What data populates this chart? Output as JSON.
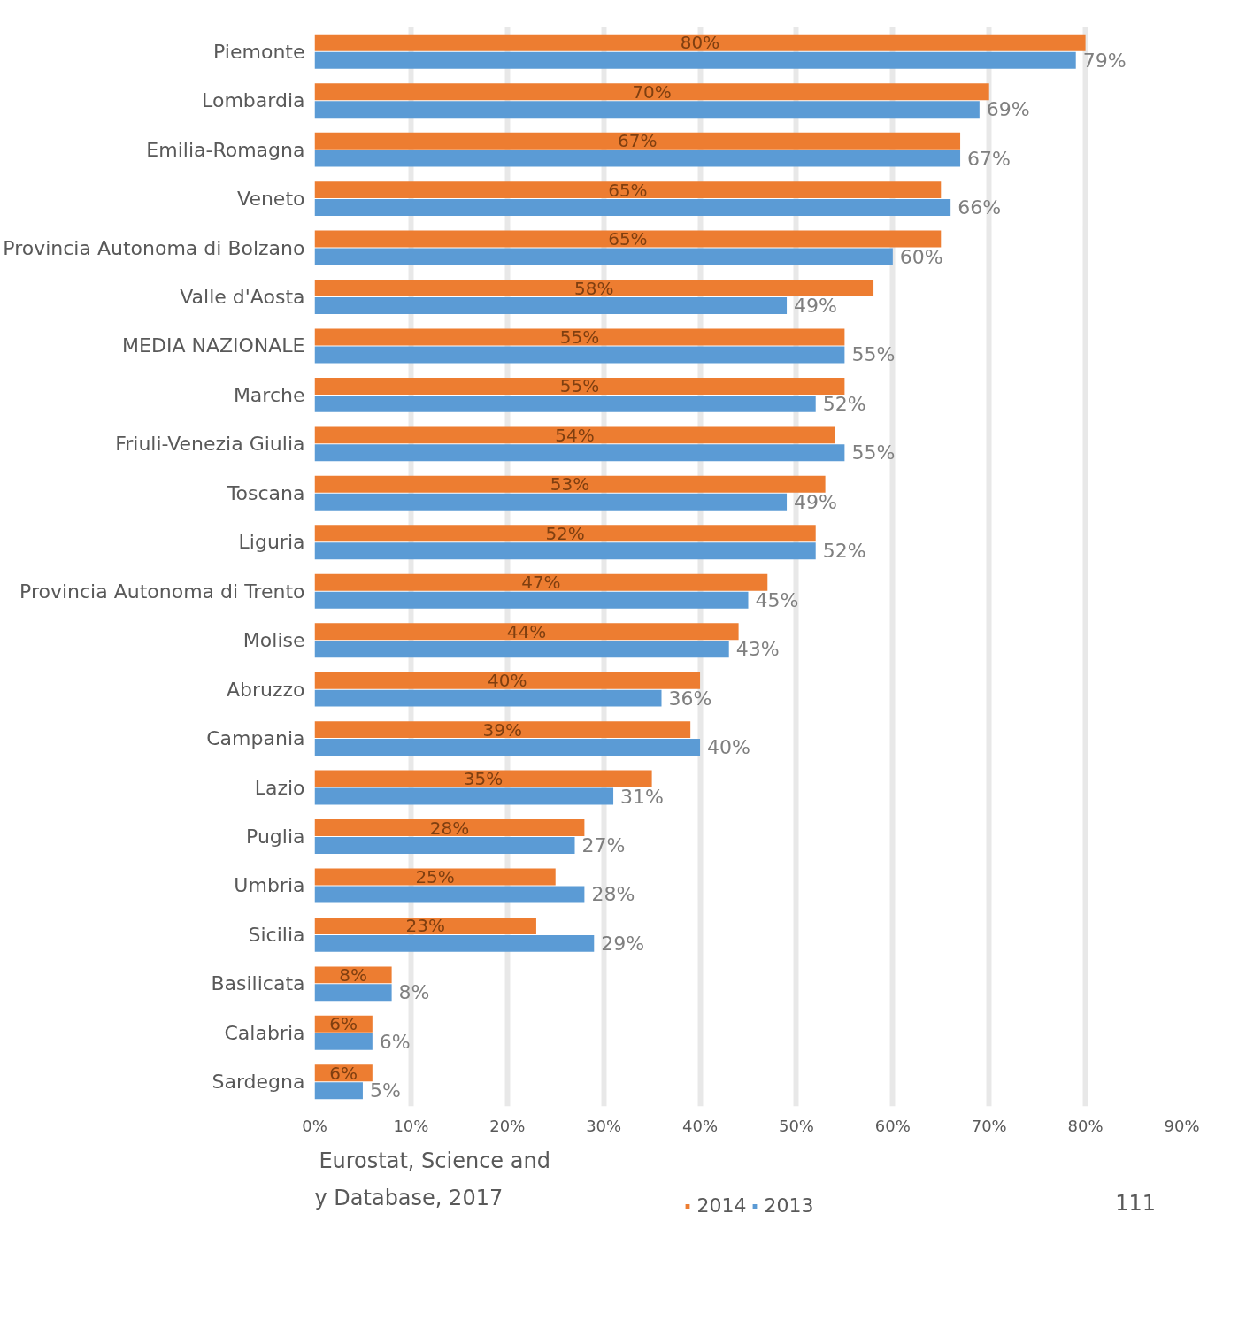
{
  "chart_data": {
    "type": "bar",
    "orientation": "horizontal",
    "categories": [
      "Piemonte",
      "Lombardia",
      "Emilia-Romagna",
      "Veneto",
      "Provincia Autonoma di Bolzano",
      "Valle d'Aosta",
      "MEDIA NAZIONALE",
      "Marche",
      "Friuli-Venezia Giulia",
      "Toscana",
      "Liguria",
      "Provincia Autonoma di Trento",
      "Molise",
      "Abruzzo",
      "Campania",
      "Lazio",
      "Puglia",
      "Umbria",
      "Sicilia",
      "Basilicata",
      "Calabria",
      "Sardegna"
    ],
    "series": [
      {
        "name": "2014",
        "color": "#ed7d31",
        "values": [
          80,
          70,
          67,
          65,
          65,
          58,
          55,
          55,
          54,
          53,
          52,
          47,
          44,
          40,
          39,
          35,
          28,
          25,
          23,
          8,
          6,
          6
        ],
        "value_labels": [
          "80%",
          "70%",
          "67%",
          "65%",
          "65%",
          "58%",
          "55%",
          "55%",
          "54%",
          "53%",
          "52%",
          "47%",
          "44%",
          "40%",
          "39%",
          "35%",
          "28%",
          "25%",
          "23%",
          "8%",
          "6%",
          "6%"
        ]
      },
      {
        "name": "2013",
        "color": "#5b9bd5",
        "values": [
          79,
          69,
          67,
          66,
          60,
          49,
          55,
          52,
          55,
          49,
          52,
          45,
          43,
          36,
          40,
          31,
          27,
          28,
          29,
          8,
          6,
          5
        ],
        "value_labels": [
          "79%",
          "69%",
          "67%",
          "66%",
          "60%",
          "49%",
          "55%",
          "52%",
          "55%",
          "49%",
          "52%",
          "45%",
          "43%",
          "36%",
          "40%",
          "31%",
          "27%",
          "28%",
          "29%",
          "8%",
          "6%",
          "5%"
        ]
      }
    ],
    "xlim": [
      0,
      90
    ],
    "xticks": [
      {
        "value": 0,
        "label": "0%"
      },
      {
        "value": 10,
        "label": "10%"
      },
      {
        "value": 20,
        "label": "20%"
      },
      {
        "value": 30,
        "label": "30%"
      },
      {
        "value": 40,
        "label": "40%"
      },
      {
        "value": 50,
        "label": "50%"
      },
      {
        "value": 60,
        "label": "60%"
      },
      {
        "value": 70,
        "label": "70%"
      },
      {
        "value": 80,
        "label": "80%"
      },
      {
        "value": 90,
        "label": "90%"
      }
    ],
    "grid": "x",
    "legend": "bottom",
    "annotations": [
      "Eurostat, Science and",
      "y Database, 2017",
      "111"
    ]
  }
}
